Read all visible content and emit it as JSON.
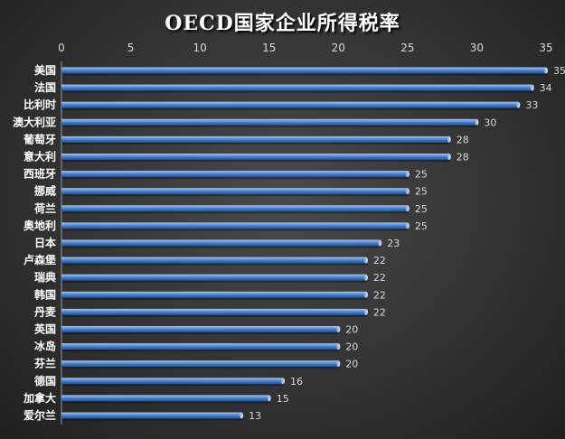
{
  "chart_data": {
    "type": "bar",
    "orientation": "horizontal",
    "title": "OECD国家企业所得税率",
    "xlabel": "",
    "ylabel": "",
    "categories": [
      "美国",
      "法国",
      "比利时",
      "澳大利亚",
      "葡萄牙",
      "意大利",
      "西班牙",
      "挪威",
      "荷兰",
      "奥地利",
      "日本",
      "卢森堡",
      "瑞典",
      "韩国",
      "丹麦",
      "英国",
      "冰岛",
      "芬兰",
      "德国",
      "加拿大",
      "爱尔兰"
    ],
    "values": [
      35,
      34,
      33,
      30,
      28,
      28,
      25,
      25,
      25,
      25,
      23,
      22,
      22,
      22,
      22,
      20,
      20,
      20,
      16,
      15,
      13
    ],
    "xlim": [
      0,
      35
    ],
    "xticks": [
      0,
      5,
      10,
      15,
      20,
      25,
      30,
      35
    ],
    "xaxis_position": "top",
    "grid": false,
    "legend": "none",
    "colors": {
      "bar_light": "#a9c8ef",
      "bar_mid": "#4f86cf",
      "bar_dark": "#1c4f9a",
      "background": "#333333",
      "text": "#ffffff"
    }
  }
}
